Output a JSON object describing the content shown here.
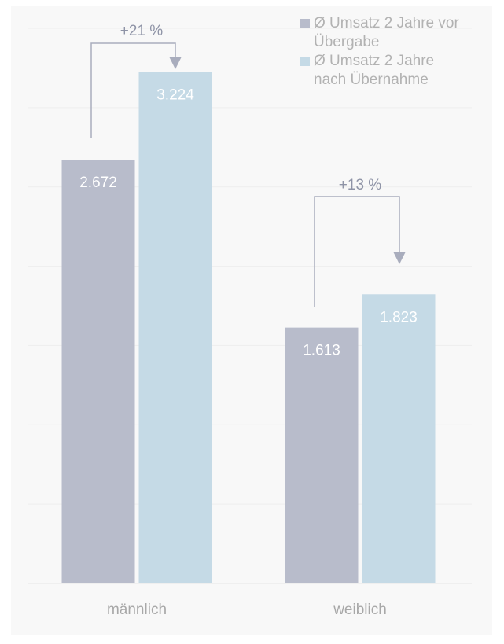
{
  "chart_data": {
    "type": "bar",
    "categories": [
      "männlich",
      "weiblich"
    ],
    "series": [
      {
        "name": "Ø Umsatz 2 Jahre vor Übergabe",
        "color": "#b8bccb",
        "values": [
          2672,
          1613
        ],
        "value_labels": [
          "2.672",
          "1.613"
        ]
      },
      {
        "name": "Ø Umsatz 2 Jahre nach Übernahme",
        "color": "#c5dae6",
        "values": [
          3224,
          1823
        ],
        "value_labels": [
          "3.224",
          "1.823"
        ]
      }
    ],
    "annotations": [
      {
        "text": "+21 %"
      },
      {
        "text": "+13 %"
      }
    ],
    "ylim": [
      0,
      3500
    ],
    "yticks": [
      0,
      500,
      1000,
      1500,
      2000,
      2500,
      3000,
      3500
    ],
    "grid": true
  }
}
